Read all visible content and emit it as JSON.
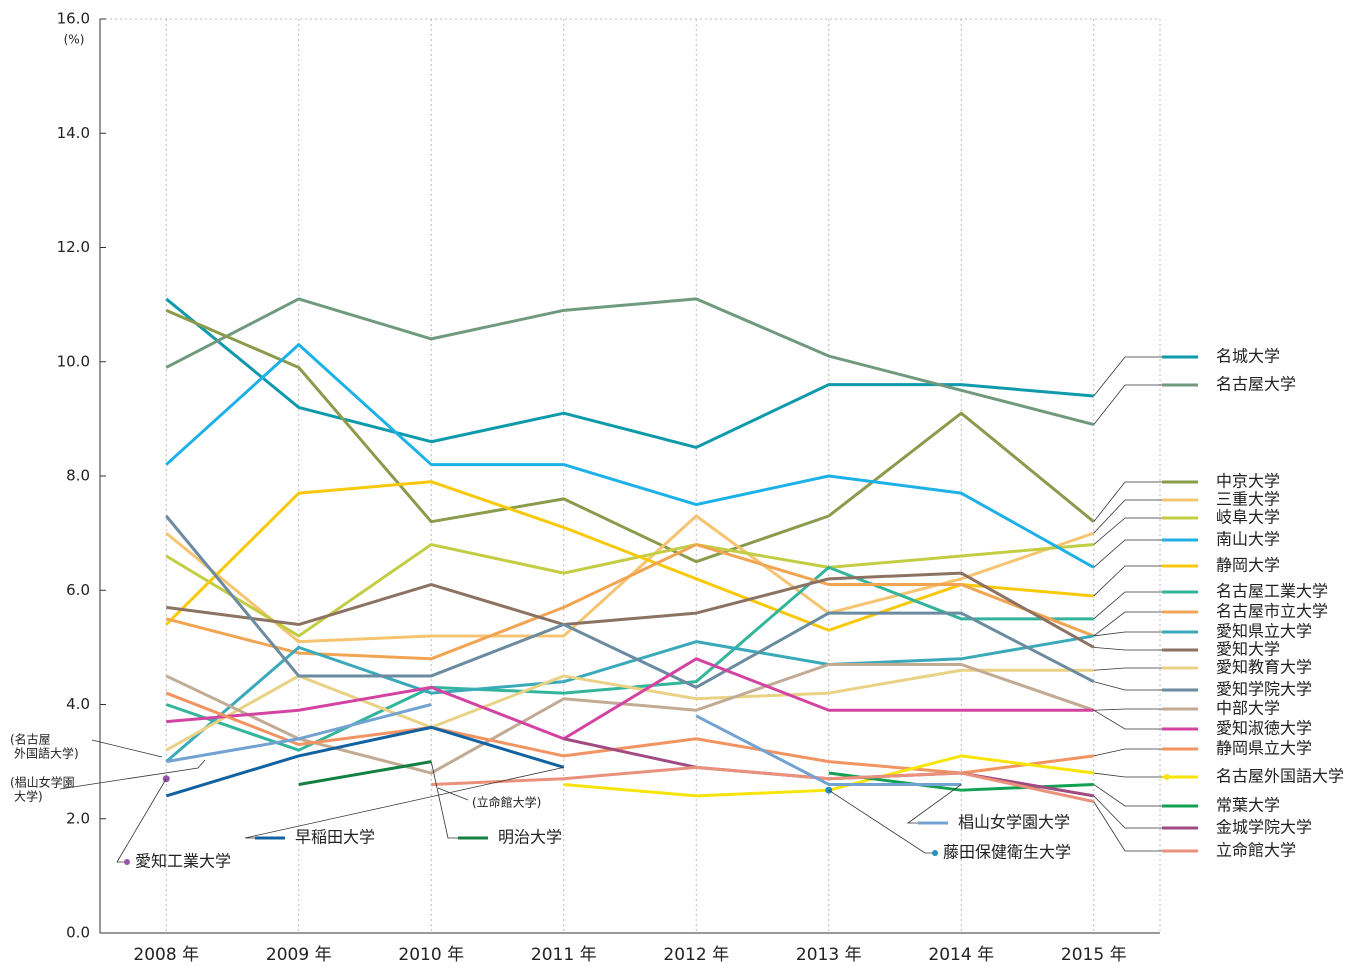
{
  "chart_data": {
    "type": "line",
    "ylabel": "(%)",
    "categories": [
      "2008 年",
      "2009 年",
      "2010 年",
      "2011 年",
      "2012 年",
      "2013 年",
      "2014 年",
      "2015 年"
    ],
    "ylim": [
      0,
      16
    ],
    "yticks": [
      {
        "value": 0,
        "label": "0.0"
      },
      {
        "value": 2,
        "label": "2.0"
      },
      {
        "value": 4,
        "label": "4.0"
      },
      {
        "value": 6,
        "label": "6.0"
      },
      {
        "value": 8,
        "label": "8.0"
      },
      {
        "value": 10,
        "label": "10.0"
      },
      {
        "value": 12,
        "label": "12.0"
      },
      {
        "value": 14,
        "label": "14.0"
      },
      {
        "value": 16,
        "label": "16.0"
      }
    ],
    "grid": true,
    "series": [
      {
        "name": "名城大学",
        "color": "#0e9aab",
        "values": [
          11.1,
          9.2,
          8.6,
          9.1,
          8.5,
          9.6,
          9.6,
          9.4
        ]
      },
      {
        "name": "名古屋大学",
        "color": "#6f9a7e",
        "values": [
          9.9,
          11.1,
          10.4,
          10.9,
          11.1,
          10.1,
          9.5,
          8.9
        ]
      },
      {
        "name": "中京大学",
        "color": "#8b9b4c",
        "values": [
          10.9,
          9.9,
          7.2,
          7.6,
          6.5,
          7.3,
          9.1,
          7.2
        ]
      },
      {
        "name": "三重大学",
        "color": "#f6c470",
        "values": [
          7.0,
          5.1,
          5.2,
          5.2,
          7.3,
          5.6,
          6.2,
          7.0
        ]
      },
      {
        "name": "岐阜大学",
        "color": "#c3cd43",
        "values": [
          6.6,
          5.2,
          6.8,
          6.3,
          6.8,
          6.4,
          6.6,
          6.8
        ]
      },
      {
        "name": "南山大学",
        "color": "#1eb1e8",
        "values": [
          8.2,
          10.3,
          8.2,
          8.2,
          7.5,
          8.0,
          7.7,
          6.4
        ]
      },
      {
        "name": "静岡大学",
        "color": "#f8c80a",
        "values": [
          5.4,
          7.7,
          7.9,
          7.1,
          6.2,
          5.3,
          6.1,
          5.9
        ]
      },
      {
        "name": "名古屋工業大学",
        "color": "#33b59c",
        "values": [
          4.0,
          3.2,
          4.3,
          4.2,
          4.4,
          6.4,
          5.5,
          5.5
        ]
      },
      {
        "name": "名古屋市立大学",
        "color": "#f1a452",
        "values": [
          5.5,
          4.9,
          4.8,
          5.7,
          6.8,
          6.1,
          6.1,
          5.2
        ]
      },
      {
        "name": "愛知県立大学",
        "color": "#3aa9ba",
        "values": [
          3.0,
          5.0,
          4.2,
          4.4,
          5.1,
          4.7,
          4.8,
          5.2
        ]
      },
      {
        "name": "愛知大学",
        "color": "#8c7262",
        "values": [
          5.7,
          5.4,
          6.1,
          5.4,
          5.6,
          6.2,
          6.3,
          5.0
        ]
      },
      {
        "name": "愛知教育大学",
        "color": "#e9d284",
        "values": [
          3.2,
          4.5,
          3.6,
          4.5,
          4.1,
          4.2,
          4.6,
          4.6
        ]
      },
      {
        "name": "愛知学院大学",
        "color": "#6b8ba1",
        "values": [
          7.3,
          4.5,
          4.5,
          5.4,
          4.3,
          5.6,
          5.6,
          4.4
        ]
      },
      {
        "name": "中部大学",
        "color": "#c2aa93",
        "values": [
          4.5,
          3.4,
          2.8,
          4.1,
          3.9,
          4.7,
          4.7,
          3.9
        ]
      },
      {
        "name": "愛知淑徳大学",
        "color": "#d243a2",
        "values": [
          3.7,
          3.9,
          4.3,
          3.4,
          4.8,
          3.9,
          3.9,
          3.9
        ]
      },
      {
        "name": "静岡県立大学",
        "color": "#f19462",
        "values": [
          4.2,
          3.3,
          3.6,
          3.1,
          3.4,
          3.0,
          2.8,
          3.1
        ]
      },
      {
        "name": "名古屋外国語大学",
        "color": "#f8e40a",
        "values": [
          null,
          null,
          null,
          2.6,
          2.4,
          2.5,
          3.1,
          2.8
        ]
      },
      {
        "name": "常葉大学",
        "color": "#12a052",
        "values": [
          null,
          null,
          null,
          null,
          null,
          2.8,
          2.5,
          2.6
        ]
      },
      {
        "name": "金城学院大学",
        "color": "#a24a82",
        "values": [
          null,
          null,
          null,
          3.4,
          2.9,
          2.7,
          2.8,
          2.4
        ]
      },
      {
        "name": "立命館大学",
        "color": "#e9917a",
        "values": [
          null,
          null,
          2.6,
          2.7,
          2.9,
          2.7,
          2.8,
          2.3
        ]
      },
      {
        "name": "早稲田大学",
        "color": "#1262a2",
        "values": [
          2.4,
          3.1,
          3.6,
          2.9,
          null,
          null,
          null,
          null
        ]
      },
      {
        "name": "明治大学",
        "color": "#138042",
        "values": [
          null,
          2.6,
          3.0,
          null,
          null,
          null,
          null,
          null
        ]
      },
      {
        "name": "椙山女学園大学",
        "color": "#72a2d2",
        "values": [
          3.0,
          3.4,
          4.0,
          null,
          3.8,
          2.6,
          2.6,
          null
        ]
      },
      {
        "name": "藤田保健衛生大学",
        "color": "#2290c2",
        "values": [
          null,
          null,
          null,
          null,
          null,
          2.5,
          null,
          null
        ]
      },
      {
        "name": "愛知工業大学",
        "color": "#9b55a8",
        "values": [
          2.7,
          null,
          null,
          null,
          null,
          null,
          null,
          null
        ]
      }
    ],
    "annotations": [
      "(名古屋",
      "外国語大学)",
      "(椙山女学園",
      "大学)",
      "(立命館大学)"
    ]
  }
}
